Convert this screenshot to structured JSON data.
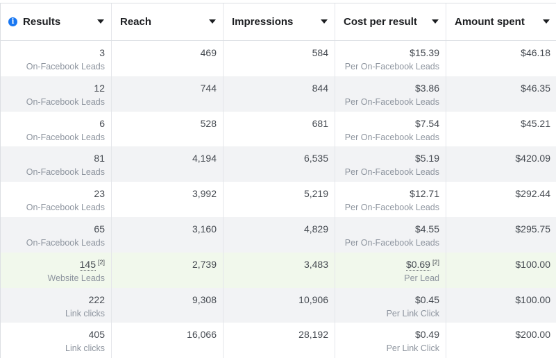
{
  "columns": [
    {
      "label": "Results",
      "has_info_icon": true
    },
    {
      "label": "Reach",
      "has_info_icon": false
    },
    {
      "label": "Impressions",
      "has_info_icon": false
    },
    {
      "label": "Cost per result",
      "has_info_icon": false
    },
    {
      "label": "Amount spent",
      "has_info_icon": false
    }
  ],
  "rows": [
    {
      "results": "3",
      "results_sub": "On-Facebook Leads",
      "reach": "469",
      "impressions": "584",
      "cost": "$15.39",
      "cost_sub": "Per On-Facebook Leads",
      "spent": "$46.18",
      "style": "normal"
    },
    {
      "results": "12",
      "results_sub": "On-Facebook Leads",
      "reach": "744",
      "impressions": "844",
      "cost": "$3.86",
      "cost_sub": "Per On-Facebook Leads",
      "spent": "$46.35",
      "style": "alt"
    },
    {
      "results": "6",
      "results_sub": "On-Facebook Leads",
      "reach": "528",
      "impressions": "681",
      "cost": "$7.54",
      "cost_sub": "Per On-Facebook Leads",
      "spent": "$45.21",
      "style": "normal"
    },
    {
      "results": "81",
      "results_sub": "On-Facebook Leads",
      "reach": "4,194",
      "impressions": "6,535",
      "cost": "$5.19",
      "cost_sub": "Per On-Facebook Leads",
      "spent": "$420.09",
      "style": "alt"
    },
    {
      "results": "23",
      "results_sub": "On-Facebook Leads",
      "reach": "3,992",
      "impressions": "5,219",
      "cost": "$12.71",
      "cost_sub": "Per On-Facebook Leads",
      "spent": "$292.44",
      "style": "normal"
    },
    {
      "results": "65",
      "results_sub": "On-Facebook Leads",
      "reach": "3,160",
      "impressions": "4,829",
      "cost": "$4.55",
      "cost_sub": "Per On-Facebook Leads",
      "spent": "$295.75",
      "style": "alt"
    },
    {
      "results": "145",
      "results_note": "[2]",
      "results_sub": "Website Leads",
      "reach": "2,739",
      "impressions": "3,483",
      "cost": "$0.69",
      "cost_note": "[2]",
      "cost_sub": "Per Lead",
      "spent": "$100.00",
      "style": "highlight"
    },
    {
      "results": "222",
      "results_sub": "Link clicks",
      "reach": "9,308",
      "impressions": "10,906",
      "cost": "$0.45",
      "cost_sub": "Per Link Click",
      "spent": "$100.00",
      "style": "alt"
    },
    {
      "results": "405",
      "results_sub": "Link clicks",
      "reach": "16,066",
      "impressions": "28,192",
      "cost": "$0.49",
      "cost_sub": "Per Link Click",
      "spent": "$200.00",
      "style": "normal"
    }
  ]
}
